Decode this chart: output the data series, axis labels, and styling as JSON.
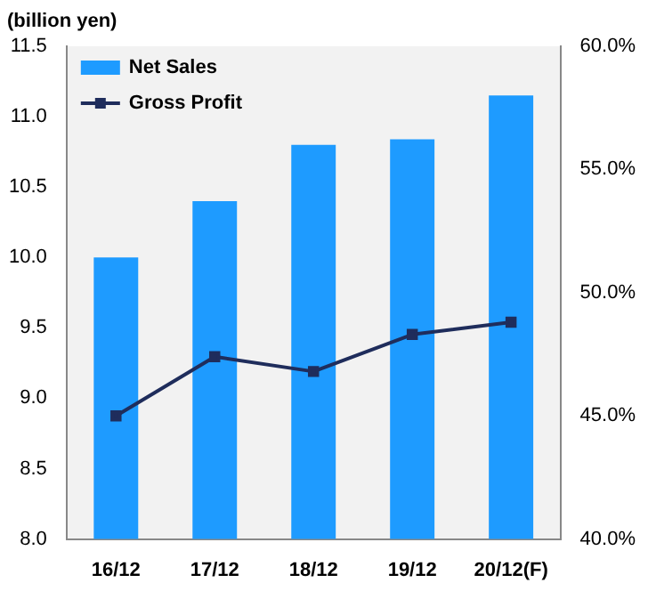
{
  "chart_data": {
    "type": "bar",
    "ylabel": "(billion yen)",
    "categories": [
      "16/12",
      "17/12",
      "18/12",
      "19/12",
      "20/12(F)"
    ],
    "series": [
      {
        "name": "Net Sales",
        "color": "#1e9bff",
        "values": [
          10.0,
          10.4,
          10.8,
          10.84,
          11.15
        ]
      },
      {
        "name": "Gross Profit",
        "type": "line",
        "axis": "y2",
        "color": "#1f2d5c",
        "values": [
          45.0,
          47.4,
          46.8,
          48.3,
          48.8
        ]
      }
    ],
    "ylim": [
      8,
      11.5
    ],
    "yticks": [
      {
        "value": 8,
        "label": "8.0"
      },
      {
        "value": 8.5,
        "label": "8.5"
      },
      {
        "value": 9,
        "label": "9.0"
      },
      {
        "value": 9.5,
        "label": "9.5"
      },
      {
        "value": 10,
        "label": "10.0"
      },
      {
        "value": 10.5,
        "label": "10.5"
      },
      {
        "value": 11,
        "label": "11.0"
      },
      {
        "value": 11.5,
        "label": "11.5"
      }
    ],
    "y2lim": [
      40,
      60
    ],
    "y2ticks": [
      {
        "value": 40,
        "label": "40.0%"
      },
      {
        "value": 45,
        "label": "45.0%"
      },
      {
        "value": 50,
        "label": "50.0%"
      },
      {
        "value": 55,
        "label": "55.0%"
      },
      {
        "value": 60,
        "label": "60.0%"
      }
    ],
    "marker": "square",
    "legend": "top left"
  }
}
